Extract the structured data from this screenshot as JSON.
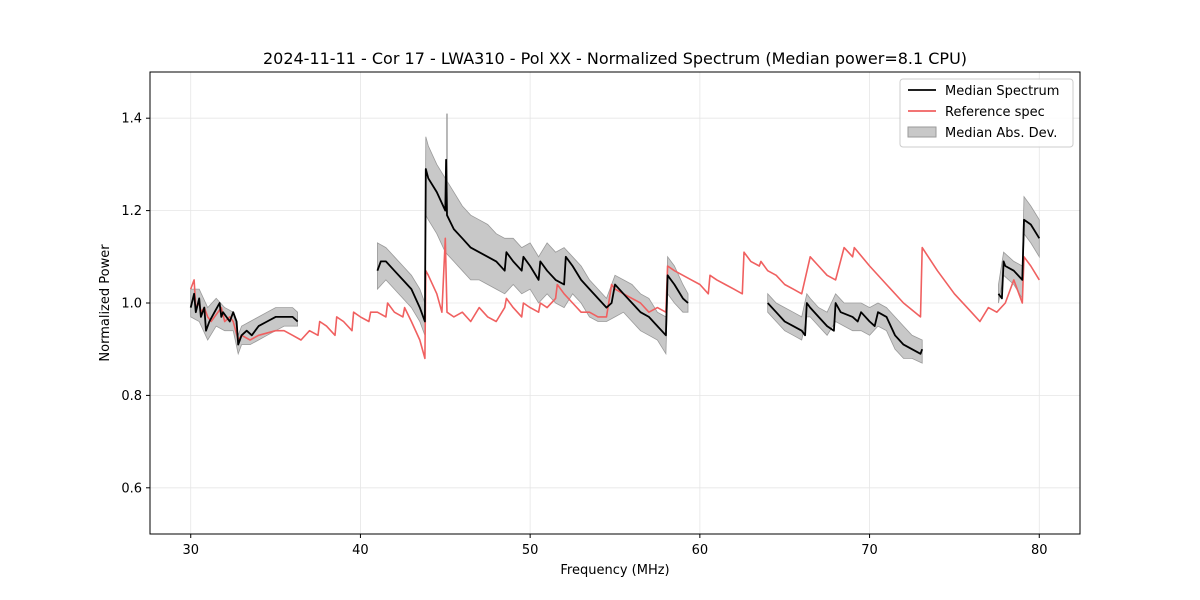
{
  "chart_data": {
    "type": "line",
    "title": "2024-11-11 - Cor 17 - LWA310 - Pol XX - Normalized Spectrum (Median power=8.1 CPU)",
    "xlabel": "Frequency (MHz)",
    "ylabel": "Normalized Power",
    "xlim": [
      27.6,
      82.4
    ],
    "ylim": [
      0.5,
      1.5
    ],
    "xticks": [
      30,
      40,
      50,
      60,
      70,
      80
    ],
    "yticks": [
      0.6,
      0.8,
      1.0,
      1.2,
      1.4
    ],
    "xtick_labels": [
      "30",
      "40",
      "50",
      "60",
      "70",
      "80"
    ],
    "ytick_labels": [
      "0.6",
      "0.8",
      "1.0",
      "1.2",
      "1.4"
    ],
    "grid": true,
    "legend_position": "top-right",
    "colors": {
      "median": "#000000",
      "reference": "#f06060",
      "mad": "#c8c8c8",
      "mad_edge": "#9a9a9a"
    },
    "legend": {
      "median": "Median Spectrum",
      "reference": "Reference spec",
      "mad": "Median Abs. Dev."
    },
    "series": [
      {
        "name": "Median Spectrum",
        "segments": [
          {
            "x": [
              30.0,
              30.2,
              30.3,
              30.5,
              30.6,
              30.8,
              30.9,
              31.1,
              31.4,
              31.7,
              31.8,
              31.9,
              32.3,
              32.5,
              32.7,
              32.8,
              33.0,
              33.3,
              33.6,
              34.0,
              34.5,
              35.0,
              35.5,
              36.0,
              36.3
            ],
            "y": [
              0.99,
              1.02,
              0.98,
              1.01,
              0.97,
              0.99,
              0.94,
              0.96,
              0.98,
              1.0,
              0.97,
              0.98,
              0.96,
              0.98,
              0.96,
              0.91,
              0.93,
              0.94,
              0.93,
              0.95,
              0.96,
              0.97,
              0.97,
              0.97,
              0.96
            ]
          },
          {
            "x": [
              41.0,
              41.2,
              41.5,
              42.0,
              42.5,
              43.0,
              43.5,
              43.8,
              43.85,
              44.0,
              44.5,
              45.0,
              45.05,
              45.1,
              45.5,
              46.0,
              46.5,
              47.0,
              47.5,
              48.0,
              48.5,
              48.6,
              49.0,
              49.5,
              49.6,
              50.0,
              50.5,
              50.6,
              51.0,
              51.5,
              52.0,
              52.1,
              52.5,
              53.0,
              53.5,
              54.0,
              54.5,
              54.8,
              55.0,
              55.5,
              56.0,
              56.5,
              57.0,
              57.5,
              58.0,
              58.1,
              58.5,
              59.0,
              59.3
            ],
            "y": [
              1.07,
              1.09,
              1.09,
              1.07,
              1.05,
              1.03,
              0.99,
              0.96,
              1.29,
              1.27,
              1.24,
              1.2,
              1.31,
              1.19,
              1.16,
              1.14,
              1.12,
              1.11,
              1.1,
              1.09,
              1.07,
              1.11,
              1.09,
              1.07,
              1.1,
              1.08,
              1.05,
              1.09,
              1.07,
              1.05,
              1.04,
              1.1,
              1.08,
              1.05,
              1.03,
              1.01,
              0.99,
              1.0,
              1.04,
              1.02,
              1.0,
              0.98,
              0.97,
              0.95,
              0.93,
              1.06,
              1.04,
              1.01,
              1.0
            ]
          },
          {
            "x": [
              64.0,
              64.5,
              65.0,
              65.5,
              66.0,
              66.2,
              66.3,
              66.5,
              67.0,
              67.5,
              67.9,
              68.0,
              68.3,
              69.0,
              69.3,
              69.5,
              70.0,
              70.3,
              70.5,
              71.0,
              71.5,
              72.0,
              72.5,
              73.0,
              73.1
            ],
            "y": [
              1.0,
              0.98,
              0.96,
              0.95,
              0.94,
              0.93,
              1.0,
              0.99,
              0.97,
              0.95,
              0.94,
              1.0,
              0.98,
              0.97,
              0.96,
              0.98,
              0.96,
              0.95,
              0.98,
              0.97,
              0.93,
              0.91,
              0.9,
              0.89,
              0.9
            ]
          },
          {
            "x": [
              77.6,
              77.8,
              77.9,
              78.0,
              78.5,
              79.0,
              79.1,
              79.5,
              80.0
            ],
            "y": [
              1.02,
              1.01,
              1.09,
              1.08,
              1.07,
              1.05,
              1.18,
              1.17,
              1.14
            ]
          }
        ]
      },
      {
        "name": "Reference spec",
        "x": [
          30.0,
          30.2,
          30.3,
          30.5,
          30.6,
          30.8,
          31.0,
          31.2,
          31.4,
          31.8,
          32.0,
          32.3,
          32.5,
          32.8,
          33.0,
          33.5,
          34.0,
          35.0,
          35.5,
          36.0,
          36.5,
          37.0,
          37.5,
          37.6,
          38.0,
          38.5,
          38.6,
          39.0,
          39.5,
          39.6,
          40.0,
          40.5,
          40.6,
          41.0,
          41.5,
          41.6,
          42.0,
          42.5,
          42.6,
          43.0,
          43.5,
          43.8,
          43.85,
          44.0,
          44.5,
          44.8,
          45.0,
          45.1,
          45.5,
          46.0,
          46.5,
          47.0,
          47.5,
          48.0,
          48.5,
          48.6,
          49.0,
          49.5,
          49.6,
          50.0,
          50.5,
          50.6,
          51.0,
          51.5,
          51.6,
          52.0,
          52.5,
          53.0,
          53.5,
          54.0,
          54.5,
          54.8,
          55.0,
          55.5,
          56.0,
          56.5,
          57.0,
          57.5,
          58.0,
          58.1,
          58.5,
          59.0,
          59.5,
          60.0,
          60.5,
          60.6,
          61.0,
          61.5,
          62.0,
          62.5,
          62.6,
          63.0,
          63.5,
          63.6,
          64.0,
          64.5,
          65.0,
          65.5,
          66.0,
          66.5,
          67.0,
          67.5,
          68.0,
          68.5,
          69.0,
          69.1,
          70.0,
          71.0,
          72.0,
          73.0,
          73.1,
          74.0,
          75.0,
          76.0,
          76.5,
          77.0,
          77.5,
          78.0,
          78.5,
          79.0,
          79.1,
          79.5,
          80.0
        ],
        "y": [
          1.03,
          1.05,
          0.99,
          1.0,
          0.98,
          0.99,
          0.97,
          0.96,
          0.97,
          0.99,
          0.96,
          0.97,
          0.96,
          0.92,
          0.93,
          0.92,
          0.93,
          0.94,
          0.94,
          0.93,
          0.92,
          0.94,
          0.93,
          0.96,
          0.95,
          0.93,
          0.97,
          0.96,
          0.94,
          0.98,
          0.97,
          0.96,
          0.98,
          0.98,
          0.97,
          1.0,
          0.98,
          0.97,
          0.99,
          0.96,
          0.92,
          0.88,
          1.07,
          1.06,
          1.02,
          0.98,
          1.14,
          0.98,
          0.97,
          0.98,
          0.96,
          0.99,
          0.97,
          0.96,
          0.99,
          1.01,
          0.99,
          0.97,
          1.0,
          0.99,
          0.98,
          1.0,
          0.99,
          1.01,
          1.04,
          1.02,
          1.0,
          0.98,
          0.98,
          0.97,
          0.97,
          1.04,
          1.03,
          1.02,
          1.01,
          1.0,
          0.98,
          0.99,
          0.98,
          1.08,
          1.07,
          1.06,
          1.05,
          1.04,
          1.02,
          1.06,
          1.05,
          1.04,
          1.03,
          1.02,
          1.11,
          1.09,
          1.08,
          1.09,
          1.07,
          1.06,
          1.04,
          1.03,
          1.02,
          1.1,
          1.08,
          1.06,
          1.05,
          1.12,
          1.1,
          1.12,
          1.08,
          1.04,
          1.0,
          0.97,
          1.12,
          1.07,
          1.02,
          0.98,
          0.96,
          0.99,
          0.98,
          1.0,
          1.05,
          1.0,
          1.1,
          1.08,
          1.05
        ]
      }
    ],
    "mad_band": [
      {
        "x": [
          30.0,
          30.5,
          31.0,
          31.5,
          32.0,
          32.5,
          32.8,
          33.0,
          33.5,
          34.0,
          34.5,
          35.0,
          35.5,
          36.0,
          36.3
        ],
        "upper": [
          1.03,
          1.03,
          0.99,
          1.01,
          0.99,
          0.98,
          0.93,
          0.95,
          0.96,
          0.97,
          0.98,
          0.99,
          0.99,
          0.99,
          0.98
        ],
        "lower": [
          0.97,
          0.96,
          0.92,
          0.95,
          0.94,
          0.94,
          0.89,
          0.91,
          0.91,
          0.92,
          0.93,
          0.94,
          0.95,
          0.95,
          0.95
        ]
      },
      {
        "x": [
          41.0,
          41.5,
          42.0,
          42.5,
          43.0,
          43.5,
          43.8,
          43.85,
          44.0,
          44.5,
          45.0,
          45.5,
          46.0,
          46.5,
          47.0,
          47.5,
          48.0,
          48.5,
          49.0,
          49.5,
          50.0,
          50.5,
          51.0,
          51.5,
          52.0,
          52.5,
          53.0,
          53.5,
          54.0,
          54.5,
          55.0,
          55.5,
          56.0,
          56.5,
          57.0,
          57.5,
          58.0,
          58.1,
          58.5,
          59.0,
          59.3
        ],
        "upper": [
          1.13,
          1.12,
          1.1,
          1.08,
          1.06,
          1.03,
          1.0,
          1.36,
          1.34,
          1.3,
          1.27,
          1.24,
          1.21,
          1.19,
          1.18,
          1.17,
          1.15,
          1.14,
          1.14,
          1.12,
          1.13,
          1.1,
          1.13,
          1.11,
          1.12,
          1.1,
          1.08,
          1.05,
          1.03,
          1.01,
          1.06,
          1.05,
          1.04,
          1.02,
          1.01,
          0.98,
          0.97,
          1.1,
          1.08,
          1.04,
          1.02
        ],
        "lower": [
          1.03,
          1.05,
          1.03,
          1.01,
          0.99,
          0.96,
          0.93,
          1.19,
          1.18,
          1.15,
          1.11,
          1.09,
          1.07,
          1.05,
          1.05,
          1.04,
          1.03,
          1.02,
          1.04,
          1.02,
          1.03,
          1.0,
          1.02,
          1.0,
          0.99,
          1.02,
          1.0,
          0.97,
          0.96,
          0.96,
          0.97,
          0.98,
          0.96,
          0.94,
          0.93,
          0.92,
          0.89,
          1.02,
          1.0,
          0.98,
          0.98
        ]
      },
      {
        "x": [
          64.0,
          64.5,
          65.0,
          65.5,
          66.0,
          66.3,
          66.5,
          67.0,
          67.5,
          68.0,
          68.5,
          69.0,
          69.5,
          70.0,
          70.5,
          71.0,
          71.5,
          72.0,
          72.5,
          73.1
        ],
        "upper": [
          1.02,
          1.0,
          0.99,
          0.98,
          0.97,
          1.02,
          1.01,
          0.99,
          0.98,
          1.02,
          1.0,
          1.0,
          1.0,
          0.99,
          1.0,
          0.99,
          0.97,
          0.95,
          0.93,
          0.92
        ],
        "lower": [
          0.98,
          0.96,
          0.94,
          0.93,
          0.92,
          0.97,
          0.97,
          0.95,
          0.93,
          0.96,
          0.95,
          0.94,
          0.94,
          0.93,
          0.95,
          0.94,
          0.9,
          0.88,
          0.88,
          0.87
        ]
      },
      {
        "x": [
          77.6,
          77.9,
          78.5,
          79.0,
          79.1,
          79.5,
          80.0
        ],
        "upper": [
          1.04,
          1.11,
          1.09,
          1.08,
          1.23,
          1.21,
          1.18
        ],
        "lower": [
          1.0,
          1.06,
          1.04,
          1.01,
          1.15,
          1.13,
          1.1
        ]
      }
    ],
    "mad_spike": {
      "x": 45.1,
      "y_top": 1.41,
      "y_bottom": 1.19
    }
  }
}
